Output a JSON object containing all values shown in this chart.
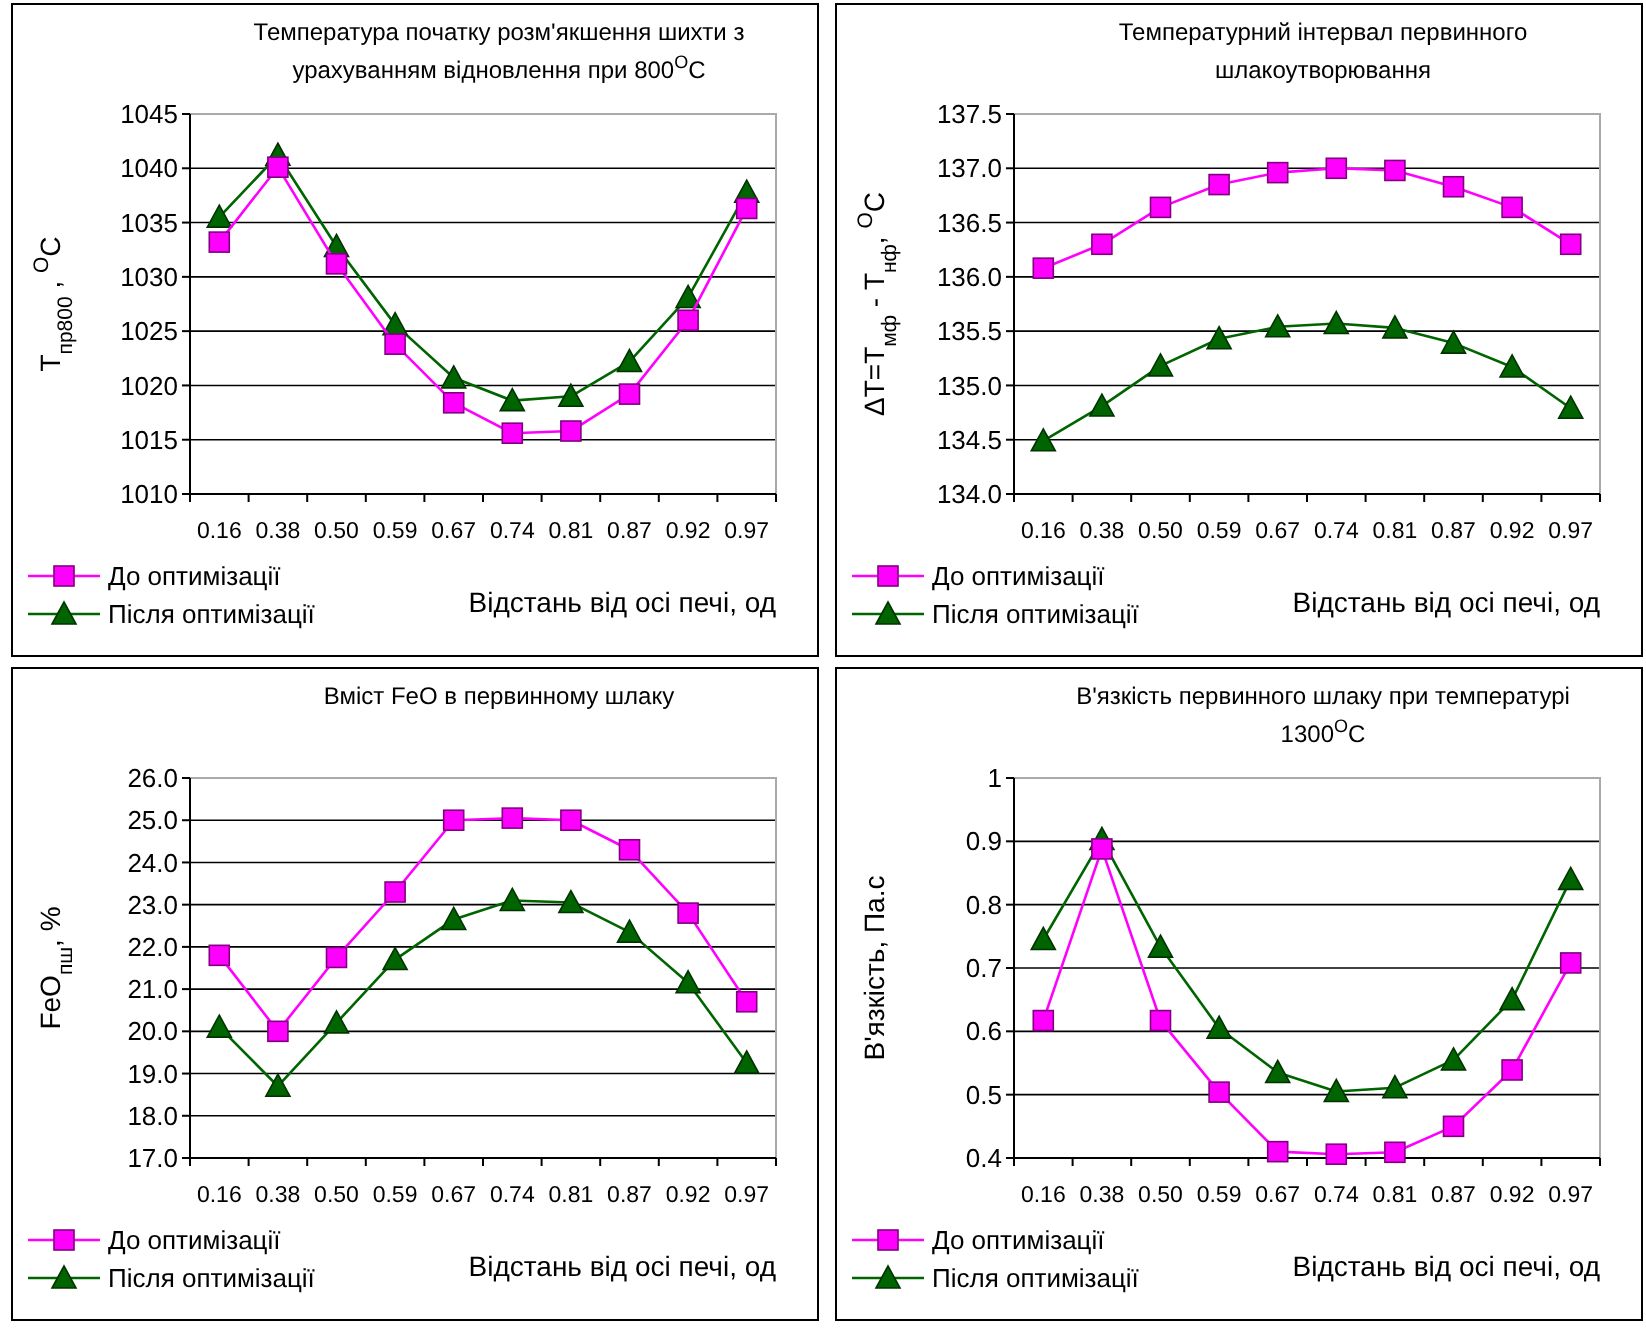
{
  "chart_data": [
    {
      "type": "line",
      "title": "Температура початку розм'якшення шихти з урахуванням відновлення при  800$^{O}$C",
      "xlabel": "Відстань від осі печі, од",
      "ylabel": "T$_{пр800}$ , $^{O}$C",
      "categories": [
        "0.16",
        "0.38",
        "0.50",
        "0.59",
        "0.67",
        "0.74",
        "0.81",
        "0.87",
        "0.92",
        "0.97"
      ],
      "ylim": [
        1010,
        1045
      ],
      "yticks": [
        1010,
        1015,
        1020,
        1025,
        1030,
        1035,
        1040,
        1045
      ],
      "grid": "y",
      "legend": "bottom left",
      "series": [
        {
          "name": "До оптимізації",
          "color": "#ff00ff",
          "marker": "square",
          "values": [
            1033.2,
            1040.1,
            1031.2,
            1023.8,
            1018.4,
            1015.6,
            1015.8,
            1019.2,
            1026.0,
            1036.3
          ]
        },
        {
          "name": "Після оптимізації",
          "color": "#006400",
          "marker": "triangle",
          "values": [
            1035.5,
            1041.2,
            1032.8,
            1025.6,
            1020.7,
            1018.6,
            1019.0,
            1022.2,
            1028.1,
            1037.8
          ]
        }
      ]
    },
    {
      "type": "line",
      "title": "Температурний інтервал первинного шлакоутворювання",
      "xlabel": "Відстань від осі печі, од",
      "ylabel": "ΔT=T$_{мф}$ - T$_{нф}$, $^{O}$C",
      "categories": [
        "0.16",
        "0.38",
        "0.50",
        "0.59",
        "0.67",
        "0.74",
        "0.81",
        "0.87",
        "0.92",
        "0.97"
      ],
      "ylim": [
        134,
        137.5
      ],
      "yticks": [
        {
          "value": 134,
          "label": "134.0"
        },
        134.5,
        {
          "value": 135,
          "label": "135.0"
        },
        135.5,
        {
          "value": 136,
          "label": "136.0"
        },
        136.5,
        {
          "value": 137,
          "label": "137.0"
        },
        137.5
      ],
      "grid": "y",
      "legend": "bottom left",
      "series": [
        {
          "name": "До оптимізації",
          "color": "#ff00ff",
          "marker": "square",
          "values": [
            136.08,
            136.3,
            136.64,
            136.85,
            136.96,
            137.0,
            136.98,
            136.83,
            136.64,
            136.3
          ]
        },
        {
          "name": "Після оптимізації",
          "color": "#006400",
          "marker": "triangle",
          "values": [
            134.49,
            134.81,
            135.18,
            135.43,
            135.54,
            135.57,
            135.53,
            135.39,
            135.17,
            134.79
          ]
        }
      ]
    },
    {
      "type": "line",
      "title": "Вміст FeO в первинному шлаку",
      "xlabel": "Відстань від осі печі, од",
      "ylabel": "FeO$_{пш}$, %",
      "categories": [
        "0.16",
        "0.38",
        "0.50",
        "0.59",
        "0.67",
        "0.74",
        "0.81",
        "0.87",
        "0.92",
        "0.97"
      ],
      "ylim": [
        17,
        26
      ],
      "yticks": [
        {
          "value": 17,
          "label": "17.0"
        },
        {
          "value": 18,
          "label": "18.0"
        },
        {
          "value": 19,
          "label": "19.0"
        },
        {
          "value": 20,
          "label": "20.0"
        },
        {
          "value": 21,
          "label": "21.0"
        },
        {
          "value": 22,
          "label": "22.0"
        },
        {
          "value": 23,
          "label": "23.0"
        },
        {
          "value": 24,
          "label": "24.0"
        },
        {
          "value": 25,
          "label": "25.0"
        },
        {
          "value": 26,
          "label": "26.0"
        }
      ],
      "grid": "y",
      "legend": "bottom left",
      "series": [
        {
          "name": "До оптимізації",
          "color": "#ff00ff",
          "marker": "square",
          "values": [
            21.8,
            20.0,
            21.75,
            23.3,
            25.0,
            25.05,
            25.0,
            24.3,
            22.8,
            20.7
          ]
        },
        {
          "name": "Після оптимізації",
          "color": "#006400",
          "marker": "triangle",
          "values": [
            20.1,
            18.7,
            20.2,
            21.7,
            22.65,
            23.1,
            23.05,
            22.35,
            21.15,
            19.25
          ]
        }
      ]
    },
    {
      "type": "line",
      "title": "В'язкість первинного шлаку при температурі 1300$^{O}$C",
      "xlabel": "Відстань від осі печі, од",
      "ylabel": "В'язкість, Па.с",
      "categories": [
        "0.16",
        "0.38",
        "0.50",
        "0.59",
        "0.67",
        "0.74",
        "0.81",
        "0.87",
        "0.92",
        "0.97"
      ],
      "ylim": [
        0.4,
        1
      ],
      "yticks": [
        0.4,
        0.5,
        0.6,
        0.7,
        0.8,
        0.9,
        1
      ],
      "grid": "y",
      "legend": "bottom left",
      "series": [
        {
          "name": "До оптимізації",
          "color": "#ff00ff",
          "marker": "square",
          "values": [
            0.617,
            0.888,
            0.617,
            0.504,
            0.41,
            0.406,
            0.409,
            0.45,
            0.539,
            0.708
          ]
        },
        {
          "name": "Після оптимізації",
          "color": "#006400",
          "marker": "triangle",
          "values": [
            0.745,
            0.903,
            0.733,
            0.605,
            0.535,
            0.505,
            0.511,
            0.555,
            0.65,
            0.84
          ]
        }
      ]
    }
  ]
}
